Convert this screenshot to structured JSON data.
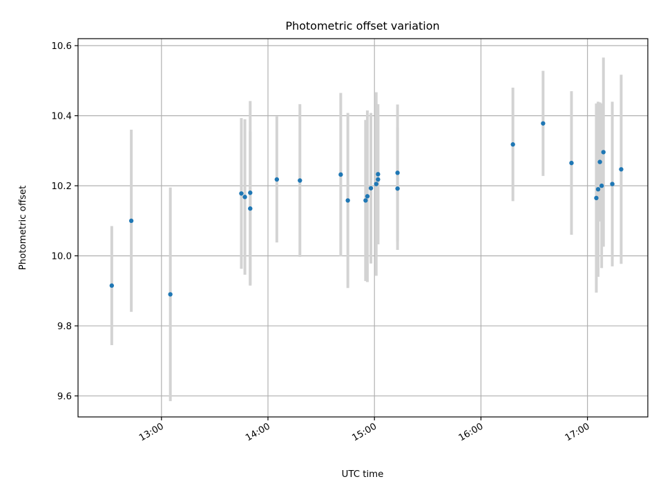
{
  "chart_data": {
    "type": "scatter",
    "title": "Photometric offset variation",
    "xlabel": "UTC time",
    "ylabel": "Photometric offset",
    "xlim": [
      "12:13",
      "17:34"
    ],
    "ylim": [
      9.54,
      10.62
    ],
    "x_ticks": [
      "13:00",
      "14:00",
      "15:00",
      "16:00",
      "17:00"
    ],
    "y_ticks": [
      "9.6",
      "9.8",
      "10.0",
      "10.2",
      "10.4",
      "10.6"
    ],
    "grid": true,
    "errorbar_color": "#d3d3d3",
    "point_color": "#1f77b4",
    "points": [
      {
        "x": "12:32",
        "y": 9.915,
        "err": 0.17
      },
      {
        "x": "12:43",
        "y": 10.1,
        "err": 0.26
      },
      {
        "x": "13:05",
        "y": 9.89,
        "err": 0.305
      },
      {
        "x": "13:45",
        "y": 10.178,
        "err": 0.215
      },
      {
        "x": "13:47",
        "y": 10.168,
        "err": 0.222
      },
      {
        "x": "13:50",
        "y": 10.135,
        "err": 0.22
      },
      {
        "x": "13:50",
        "y": 10.18,
        "err": 0.262
      },
      {
        "x": "14:05",
        "y": 10.218,
        "err": 0.18
      },
      {
        "x": "14:18",
        "y": 10.215,
        "err": 0.218
      },
      {
        "x": "14:41",
        "y": 10.232,
        "err": 0.233
      },
      {
        "x": "14:45",
        "y": 10.158,
        "err": 0.25
      },
      {
        "x": "14:55",
        "y": 10.158,
        "err": 0.23
      },
      {
        "x": "14:56",
        "y": 10.17,
        "err": 0.245
      },
      {
        "x": "14:58",
        "y": 10.193,
        "err": 0.215
      },
      {
        "x": "15:01",
        "y": 10.205,
        "err": 0.262
      },
      {
        "x": "15:02",
        "y": 10.218,
        "err": 0.185
      },
      {
        "x": "15:02",
        "y": 10.233,
        "err": 0.2
      },
      {
        "x": "15:13",
        "y": 10.192,
        "err": 0.175
      },
      {
        "x": "15:13",
        "y": 10.237,
        "err": 0.195
      },
      {
        "x": "16:18",
        "y": 10.318,
        "err": 0.162
      },
      {
        "x": "16:35",
        "y": 10.378,
        "err": 0.15
      },
      {
        "x": "16:51",
        "y": 10.265,
        "err": 0.205
      },
      {
        "x": "17:05",
        "y": 10.165,
        "err": 0.27
      },
      {
        "x": "17:06",
        "y": 10.19,
        "err": 0.25
      },
      {
        "x": "17:07",
        "y": 10.268,
        "err": 0.17
      },
      {
        "x": "17:08",
        "y": 10.2,
        "err": 0.235
      },
      {
        "x": "17:09",
        "y": 10.296,
        "err": 0.27
      },
      {
        "x": "17:14",
        "y": 10.205,
        "err": 0.235
      },
      {
        "x": "17:19",
        "y": 10.247,
        "err": 0.27
      }
    ]
  }
}
